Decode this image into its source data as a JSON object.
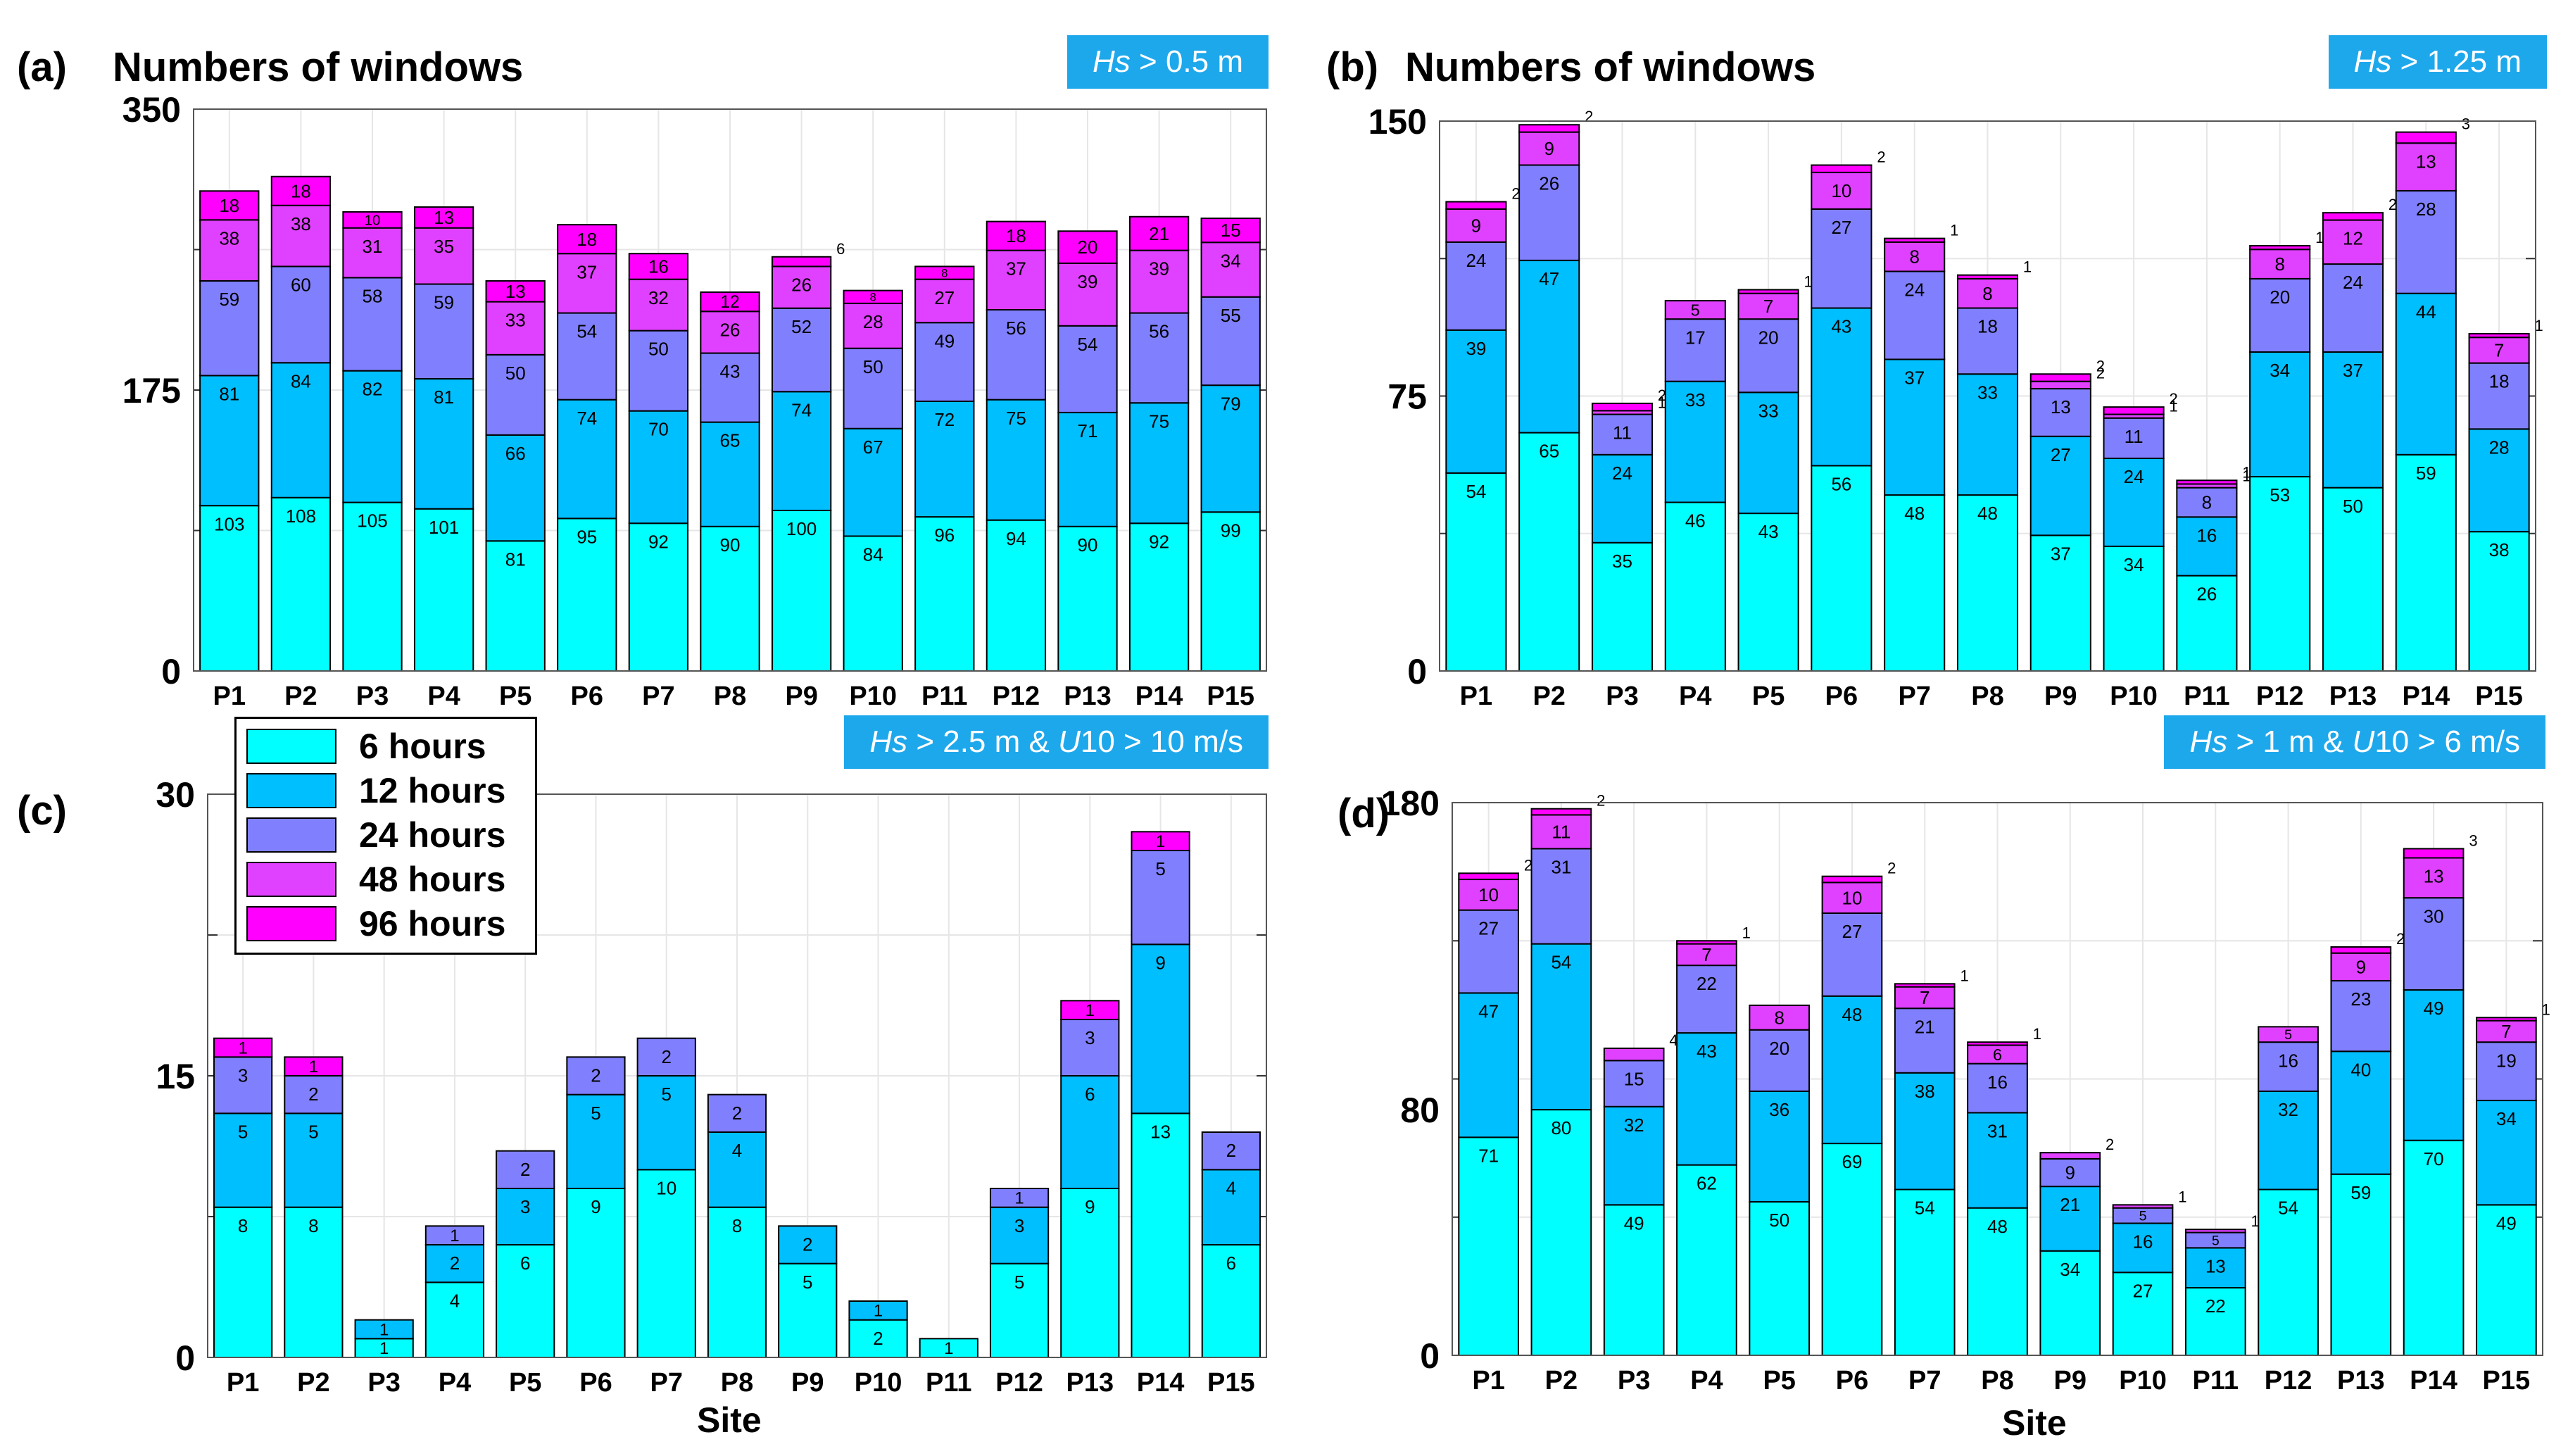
{
  "colors": {
    "6h": "#00ffff",
    "12h": "#00bfff",
    "24h": "#8080ff",
    "48h": "#e040ff",
    "96h": "#ff00ff",
    "condition_box": "#1ea8ec"
  },
  "legend": [
    {
      "key": "6h",
      "label": "6 hours"
    },
    {
      "key": "12h",
      "label": "12 hours"
    },
    {
      "key": "24h",
      "label": "24 hours"
    },
    {
      "key": "48h",
      "label": "48 hours"
    },
    {
      "key": "96h",
      "label": "96 hours"
    }
  ],
  "panels": [
    {
      "letter": "(a)",
      "title": "Numbers of windows",
      "condition_html": "<i>Hs</i> &gt; 0.5 m",
      "xlabel": ""
    },
    {
      "letter": "(b)",
      "title": "Numbers of windows",
      "condition_html": "<i>Hs</i> &gt; 1.25 m",
      "xlabel": ""
    },
    {
      "letter": "(c)",
      "title": "",
      "condition_html": "<i>Hs</i> &gt; 2.5 m &amp; <i>U</i>10 &gt; 10 m/s",
      "xlabel": "Site"
    },
    {
      "letter": "(d)",
      "title": "",
      "condition_html": "<i>Hs</i> &gt; 1 m &amp; <i>U</i>10 &gt; 6 m/s",
      "xlabel": "Site"
    }
  ],
  "chart_data": [
    {
      "type": "bar",
      "stacked": true,
      "title": "Numbers of windows",
      "condition": "Hs > 0.5 m",
      "xlabel": "",
      "ylabel": "",
      "ylim": [
        0,
        350
      ],
      "yticks": [
        0,
        175,
        350
      ],
      "categories": [
        "P1",
        "P2",
        "P3",
        "P4",
        "P5",
        "P6",
        "P7",
        "P8",
        "P9",
        "P10",
        "P11",
        "P12",
        "P13",
        "P14",
        "P15"
      ],
      "series": [
        {
          "name": "6 hours",
          "values": [
            103,
            108,
            105,
            101,
            81,
            95,
            92,
            90,
            100,
            84,
            96,
            94,
            90,
            92,
            99
          ]
        },
        {
          "name": "12 hours",
          "values": [
            81,
            84,
            82,
            81,
            66,
            74,
            70,
            65,
            74,
            67,
            72,
            75,
            71,
            75,
            79
          ]
        },
        {
          "name": "24 hours",
          "values": [
            59,
            60,
            58,
            59,
            50,
            54,
            50,
            43,
            52,
            50,
            49,
            56,
            54,
            56,
            55
          ]
        },
        {
          "name": "48 hours",
          "values": [
            38,
            38,
            31,
            35,
            33,
            37,
            32,
            26,
            26,
            28,
            27,
            37,
            39,
            39,
            34
          ]
        },
        {
          "name": "96 hours",
          "values": [
            18,
            18,
            10,
            13,
            13,
            18,
            16,
            12,
            6,
            8,
            8,
            18,
            20,
            21,
            15
          ]
        }
      ]
    },
    {
      "type": "bar",
      "stacked": true,
      "title": "Numbers of windows",
      "condition": "Hs > 1.25 m",
      "xlabel": "",
      "ylabel": "",
      "ylim": [
        0,
        150
      ],
      "yticks": [
        0,
        75,
        150
      ],
      "categories": [
        "P1",
        "P2",
        "P3",
        "P4",
        "P5",
        "P6",
        "P7",
        "P8",
        "P9",
        "P10",
        "P11",
        "P12",
        "P13",
        "P14",
        "P15"
      ],
      "series": [
        {
          "name": "6 hours",
          "values": [
            54,
            65,
            35,
            46,
            43,
            56,
            48,
            48,
            37,
            34,
            26,
            53,
            50,
            59,
            38
          ]
        },
        {
          "name": "12 hours",
          "values": [
            39,
            47,
            24,
            33,
            33,
            43,
            37,
            33,
            27,
            24,
            16,
            34,
            37,
            44,
            28
          ]
        },
        {
          "name": "24 hours",
          "values": [
            24,
            26,
            11,
            17,
            20,
            27,
            24,
            18,
            13,
            11,
            8,
            20,
            24,
            28,
            18
          ]
        },
        {
          "name": "48 hours",
          "values": [
            9,
            9,
            1,
            5,
            7,
            10,
            8,
            8,
            2,
            1,
            1,
            8,
            12,
            13,
            7
          ]
        },
        {
          "name": "96 hours",
          "values": [
            2,
            2,
            2,
            0,
            1,
            2,
            1,
            1,
            2,
            2,
            1,
            1,
            2,
            3,
            1
          ]
        }
      ]
    },
    {
      "type": "bar",
      "stacked": true,
      "title": "",
      "condition": "Hs > 2.5 m & U10 > 10 m/s",
      "xlabel": "Site",
      "ylabel": "",
      "ylim": [
        0,
        30
      ],
      "yticks": [
        0,
        15,
        30
      ],
      "categories": [
        "P1",
        "P2",
        "P3",
        "P4",
        "P5",
        "P6",
        "P7",
        "P8",
        "P9",
        "P10",
        "P11",
        "P12",
        "P13",
        "P14",
        "P15"
      ],
      "series": [
        {
          "name": "6 hours",
          "values": [
            8,
            8,
            1,
            4,
            6,
            9,
            10,
            8,
            5,
            2,
            1,
            5,
            9,
            13,
            6
          ]
        },
        {
          "name": "12 hours",
          "values": [
            5,
            5,
            1,
            2,
            3,
            5,
            5,
            4,
            2,
            1,
            0,
            3,
            6,
            9,
            4
          ]
        },
        {
          "name": "24 hours",
          "values": [
            3,
            2,
            0,
            1,
            2,
            2,
            2,
            2,
            0,
            0,
            0,
            1,
            3,
            5,
            2
          ]
        },
        {
          "name": "48 hours",
          "values": [
            0,
            0,
            0,
            0,
            0,
            0,
            0,
            0,
            0,
            0,
            0,
            0,
            0,
            0,
            0
          ]
        },
        {
          "name": "96 hours",
          "values": [
            1,
            1,
            0,
            0,
            0,
            0,
            0,
            0,
            0,
            0,
            0,
            0,
            1,
            1,
            0
          ]
        }
      ]
    },
    {
      "type": "bar",
      "stacked": true,
      "title": "",
      "condition": "Hs > 1 m & U10 > 6 m/s",
      "xlabel": "Site",
      "ylabel": "",
      "ylim": [
        0,
        180
      ],
      "yticks": [
        0,
        80,
        180
      ],
      "categories": [
        "P1",
        "P2",
        "P3",
        "P4",
        "P5",
        "P6",
        "P7",
        "P8",
        "P9",
        "P10",
        "P11",
        "P12",
        "P13",
        "P14",
        "P15"
      ],
      "series": [
        {
          "name": "6 hours",
          "values": [
            71,
            80,
            49,
            62,
            50,
            69,
            54,
            48,
            34,
            27,
            22,
            54,
            59,
            70,
            49
          ]
        },
        {
          "name": "12 hours",
          "values": [
            47,
            54,
            32,
            43,
            36,
            48,
            38,
            31,
            21,
            16,
            13,
            32,
            40,
            49,
            34
          ]
        },
        {
          "name": "24 hours",
          "values": [
            27,
            31,
            15,
            22,
            20,
            27,
            21,
            16,
            9,
            5,
            5,
            16,
            23,
            30,
            19
          ]
        },
        {
          "name": "48 hours",
          "values": [
            10,
            11,
            4,
            7,
            8,
            10,
            7,
            6,
            2,
            1,
            1,
            5,
            9,
            13,
            7
          ]
        },
        {
          "name": "96 hours",
          "values": [
            2,
            2,
            0,
            1,
            0,
            2,
            1,
            1,
            0,
            0,
            0,
            0,
            2,
            3,
            1
          ]
        }
      ]
    }
  ]
}
